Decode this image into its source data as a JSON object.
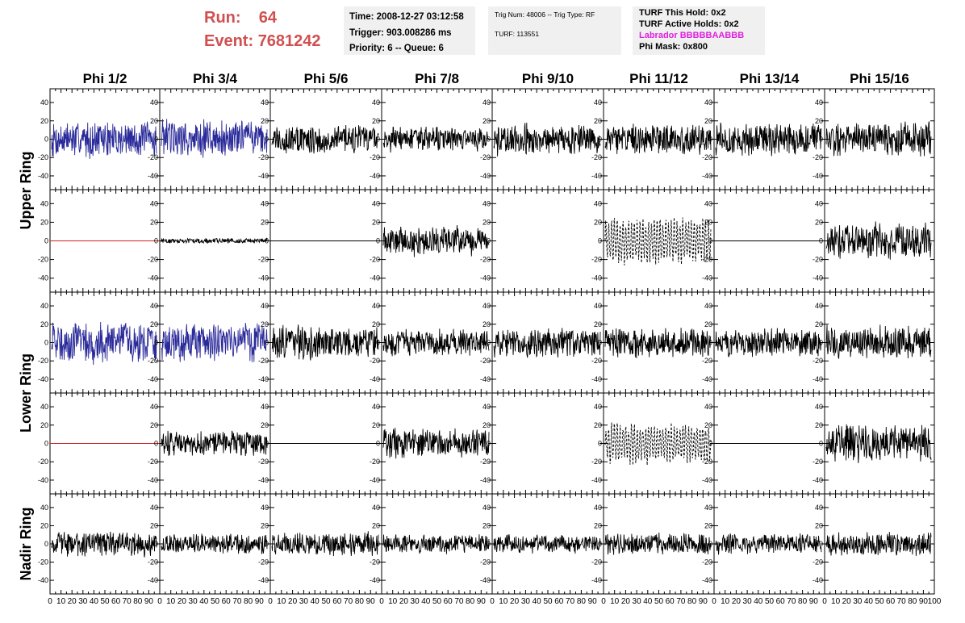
{
  "header": {
    "run_label": "Run:",
    "run_value": "64",
    "event_label": "Event:",
    "event_value": "7681242"
  },
  "info_box_1": {
    "time": "Time: 2008-12-27 03:12:58",
    "trigger": "Trigger: 903.008286 ms",
    "priority": "Priority: 6 -- Queue: 6"
  },
  "info_box_2": {
    "trig": "Trig Num: 48006 -- Trig Type: RF",
    "turf": "TURF: 113551"
  },
  "info_box_3": {
    "this_hold": "TURF This Hold: 0x2",
    "active_holds": "TURF Active Holds: 0x2",
    "labrador": "Labrador BBBBBAABBB",
    "phi_mask": "Phi Mask: 0x800",
    "labrador_color": "#e020e0"
  },
  "chart_data": {
    "type": "line",
    "columns": [
      "Phi 1/2",
      "Phi 3/4",
      "Phi 5/6",
      "Phi 7/8",
      "Phi 9/10",
      "Phi 11/12",
      "Phi 13/14",
      "Phi 15/16"
    ],
    "ring_labels": [
      "Upper Ring",
      "Lower Ring",
      "Nadir Ring"
    ],
    "ylim": [
      -55,
      55
    ],
    "xlim": [
      0,
      100
    ],
    "yticks": [
      -40,
      -20,
      0,
      20,
      40
    ],
    "xtick_labels": [
      "0",
      "10",
      "20",
      "30",
      "40",
      "50",
      "60",
      "70",
      "80",
      "90",
      "100"
    ],
    "colors": {
      "blue": "#2a2a9a",
      "red": "#cc2020",
      "black": "#000000"
    },
    "panel_rows": [
      [
        {
          "style": "blue",
          "amplitude": 22
        },
        {
          "style": "blue",
          "amplitude": 24
        },
        {
          "style": "black",
          "amplitude": 18
        },
        {
          "style": "black",
          "amplitude": 15
        },
        {
          "style": "black",
          "amplitude": 19
        },
        {
          "style": "black",
          "amplitude": 18
        },
        {
          "style": "black",
          "amplitude": 20
        },
        {
          "style": "black",
          "amplitude": 20
        }
      ],
      [
        {
          "style": "red-flat",
          "amplitude": 0
        },
        {
          "style": "black",
          "amplitude": 3
        },
        {
          "style": "black-flat",
          "amplitude": 0
        },
        {
          "style": "black",
          "amplitude": 18
        },
        {
          "style": "empty",
          "amplitude": 0
        },
        {
          "style": "dashed",
          "amplitude": 22
        },
        {
          "style": "black-flat",
          "amplitude": 0
        },
        {
          "style": "black",
          "amplitude": 22
        }
      ],
      [
        {
          "style": "blue",
          "amplitude": 25
        },
        {
          "style": "blue",
          "amplitude": 23
        },
        {
          "style": "black",
          "amplitude": 20
        },
        {
          "style": "black",
          "amplitude": 16
        },
        {
          "style": "black",
          "amplitude": 18
        },
        {
          "style": "black",
          "amplitude": 19
        },
        {
          "style": "black",
          "amplitude": 17
        },
        {
          "style": "black",
          "amplitude": 20
        }
      ],
      [
        {
          "style": "red-flat",
          "amplitude": 0
        },
        {
          "style": "black",
          "amplitude": 15
        },
        {
          "style": "black-flat",
          "amplitude": 0
        },
        {
          "style": "black",
          "amplitude": 18
        },
        {
          "style": "empty",
          "amplitude": 0
        },
        {
          "style": "dashed",
          "amplitude": 20
        },
        {
          "style": "black-flat",
          "amplitude": 0
        },
        {
          "style": "black",
          "amplitude": 22
        }
      ],
      [
        {
          "style": "black",
          "amplitude": 15
        },
        {
          "style": "black",
          "amplitude": 12
        },
        {
          "style": "black",
          "amplitude": 14
        },
        {
          "style": "black",
          "amplitude": 12
        },
        {
          "style": "black",
          "amplitude": 11
        },
        {
          "style": "black",
          "amplitude": 13
        },
        {
          "style": "black",
          "amplitude": 12
        },
        {
          "style": "black",
          "amplitude": 15
        }
      ]
    ]
  }
}
